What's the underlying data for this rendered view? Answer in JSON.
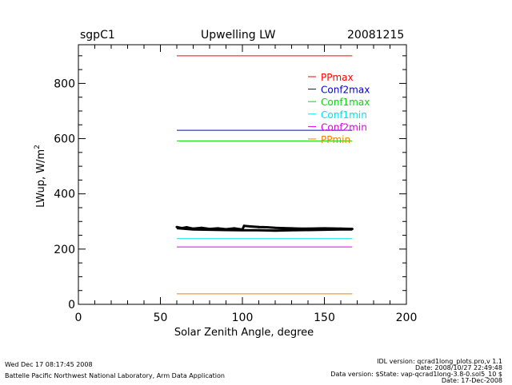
{
  "header": {
    "site": "sgpC1",
    "title": "Upwelling  LW",
    "date": "20081215"
  },
  "footer": {
    "timestamp": "Wed Dec 17 08:17:45 2008",
    "lab": "Battelle Pacific Northwest National Laboratory, Arm Data Application",
    "idl_version": "IDL version: qcrad1long_plots.pro,v 1.1",
    "idl_date": "Date: 2008/10/27 22:49:48",
    "data_version": "Data version: $State: vap-qcrad1long-3.8-0.sol5_10 $",
    "data_date": "Date: 17-Dec-2008"
  },
  "chart_data": {
    "type": "line",
    "title": "Upwelling  LW",
    "xlabel": "Solar  Zenith  Angle,  degree",
    "ylabel": "LWup,  W/m",
    "ylabel_superscript": "2",
    "xlim": [
      0,
      200
    ],
    "ylim": [
      0,
      940
    ],
    "xticks": [
      0,
      50,
      100,
      150,
      200
    ],
    "yticks": [
      200,
      400,
      600,
      800
    ],
    "legend_position": "top-right",
    "limit_series": [
      {
        "name": "PPmax",
        "color": "#ff0000",
        "y": 900,
        "x": [
          60,
          167
        ]
      },
      {
        "name": "Conf2max",
        "color": "#0000cc",
        "y": 630,
        "x": [
          60,
          167
        ]
      },
      {
        "name": "Conf1max",
        "color": "#00dd00",
        "y": 592,
        "x": [
          60,
          167
        ]
      },
      {
        "name": "Conf1min",
        "color": "#00e5e5",
        "y": 238,
        "x": [
          60,
          167
        ]
      },
      {
        "name": "Conf2min",
        "color": "#e000e0",
        "y": 208,
        "x": [
          60,
          167
        ]
      },
      {
        "name": "PPmin",
        "color": "#f08000",
        "y": 38,
        "x": [
          60,
          167
        ]
      }
    ],
    "data_series": {
      "name": "LWup",
      "color": "#000000",
      "points": [
        [
          60,
          280
        ],
        [
          63,
          276
        ],
        [
          66,
          279
        ],
        [
          70,
          274
        ],
        [
          75,
          277
        ],
        [
          80,
          273
        ],
        [
          85,
          275
        ],
        [
          90,
          272
        ],
        [
          95,
          275
        ],
        [
          100,
          271
        ],
        [
          101,
          284
        ],
        [
          105,
          282
        ],
        [
          110,
          280
        ],
        [
          115,
          279
        ],
        [
          120,
          277
        ],
        [
          125,
          276
        ],
        [
          130,
          275
        ],
        [
          135,
          274
        ],
        [
          140,
          274
        ],
        [
          150,
          275
        ],
        [
          160,
          274
        ],
        [
          167,
          273
        ]
      ],
      "lower_trace": [
        [
          60,
          276
        ],
        [
          70,
          271
        ],
        [
          80,
          270
        ],
        [
          90,
          269
        ],
        [
          100,
          268
        ],
        [
          110,
          268
        ],
        [
          120,
          267
        ],
        [
          130,
          268
        ],
        [
          140,
          269
        ],
        [
          150,
          270
        ],
        [
          160,
          271
        ],
        [
          167,
          271
        ]
      ]
    }
  }
}
